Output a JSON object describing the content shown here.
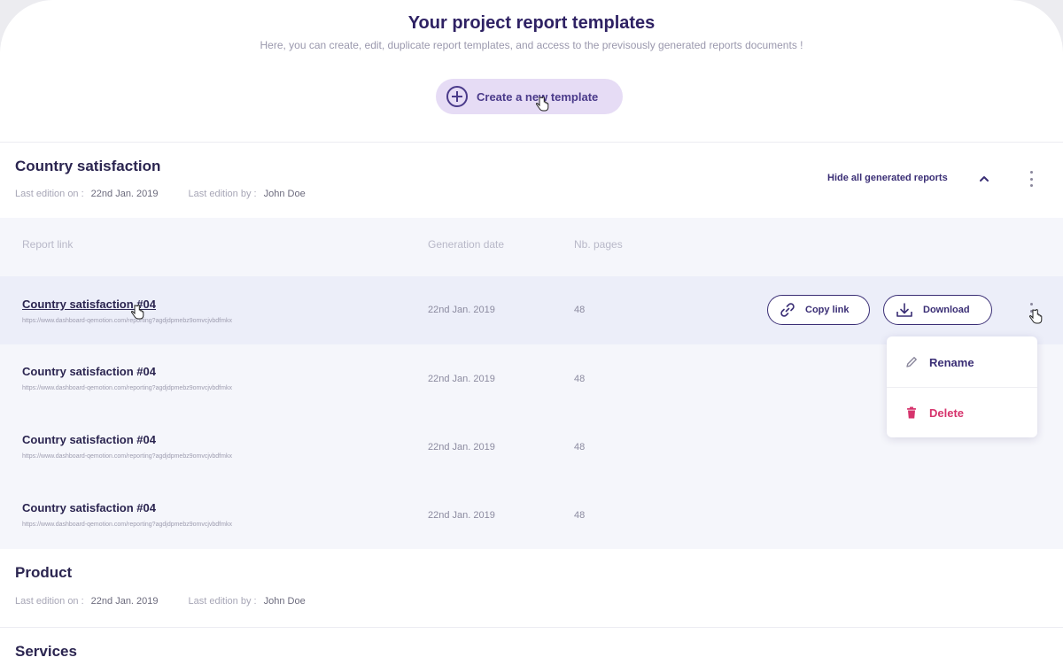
{
  "header": {
    "title": "Your project report templates",
    "subtitle": "Here, you can create, edit, duplicate report templates, and access to the previsously generated reports documents !",
    "create_button_label": "Create a new template",
    "create_button_icon": "plus-circle-icon"
  },
  "sections": [
    {
      "title": "Country satisfaction",
      "last_edition_label": "Last edition on :",
      "last_edition_date": "22nd Jan. 2019",
      "last_edited_by_label": "Last edition by :",
      "last_edited_by": "John Doe",
      "toggle_label": "Hide all generated reports",
      "expanded": true
    },
    {
      "title": "Product",
      "last_edition_label": "Last edition on :",
      "last_edition_date": "22nd Jan. 2019",
      "last_edited_by_label": "Last edition by :",
      "last_edited_by": "John Doe"
    },
    {
      "title": "Services"
    }
  ],
  "table": {
    "columns": [
      "Report link",
      "Generation date",
      "Nb. pages"
    ],
    "rows": [
      {
        "title": "Country satisfaction #04",
        "url": "https://www.dashboard-qemotion.com/reporting?agdjdpmebz9omvcjvbdfmkx",
        "date": "22nd Jan. 2019",
        "pages": "48",
        "active": true
      },
      {
        "title": "Country satisfaction #04",
        "url": "https://www.dashboard-qemotion.com/reporting?agdjdpmebz9omvcjvbdfmkx",
        "date": "22nd Jan. 2019",
        "pages": "48"
      },
      {
        "title": "Country satisfaction #04",
        "url": "https://www.dashboard-qemotion.com/reporting?agdjdpmebz9omvcjvbdfmkx",
        "date": "22nd Jan. 2019",
        "pages": "48"
      },
      {
        "title": "Country satisfaction #04",
        "url": "https://www.dashboard-qemotion.com/reporting?agdjdpmebz9omvcjvbdfmkx",
        "date": "22nd Jan. 2019",
        "pages": "48"
      }
    ],
    "row_actions": {
      "copy_link_label": "Copy link",
      "download_label": "Download"
    }
  },
  "context_menu": {
    "rename_label": "Rename",
    "delete_label": "Delete"
  },
  "colors": {
    "brand_dark": "#2e2163",
    "accent_purple": "#3a2e75",
    "create_button_bg": "#e6dcf5",
    "delete_red": "#d6336c",
    "table_bg": "#f5f6fb",
    "active_row_bg": "#eceef9"
  }
}
